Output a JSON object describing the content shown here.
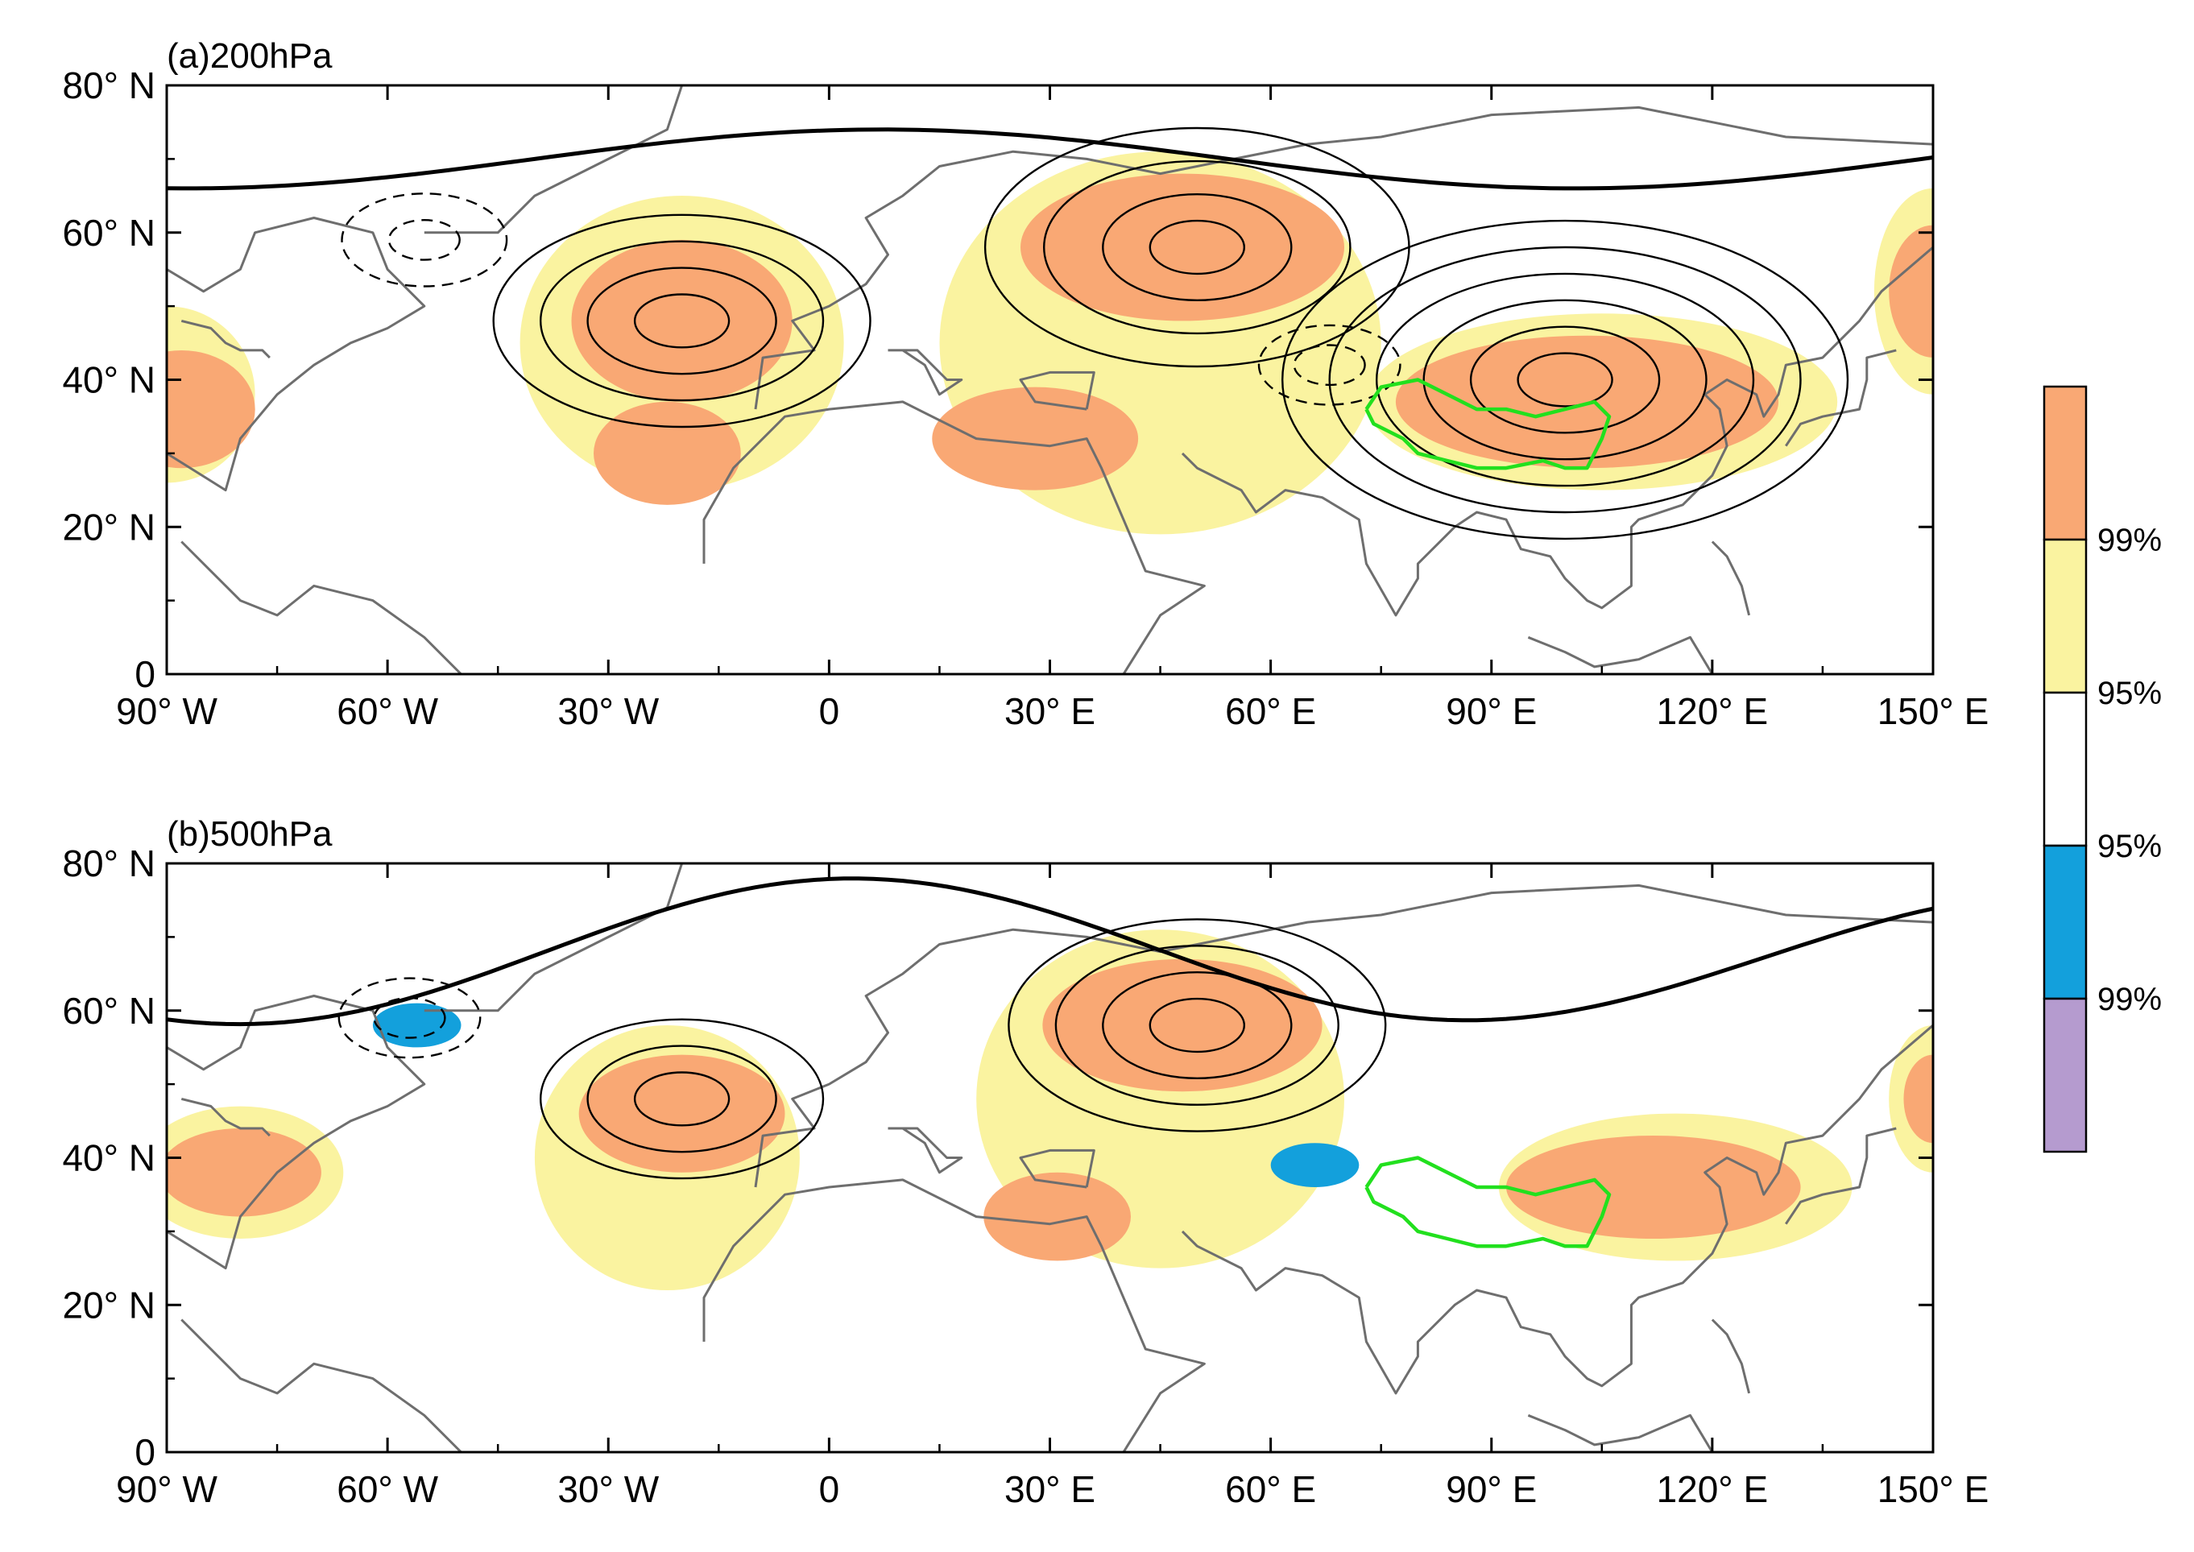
{
  "figure": {
    "panels": [
      {
        "id": "a",
        "title": "(a)200hPa",
        "lat_ticks": [
          "80° N",
          "60° N",
          "40° N",
          "20° N",
          "0"
        ],
        "lon_ticks": [
          "90° W",
          "60° W",
          "30° W",
          "0",
          "30° E",
          "60° E",
          "90° E",
          "120° E",
          "150° E"
        ],
        "lon_range": [
          -90,
          150
        ],
        "lat_range": [
          0,
          80
        ],
        "shading": [
          {
            "level": "95%",
            "color": "#faf3a0",
            "center": [
              -90,
              38
            ],
            "radius": [
              12,
              12
            ]
          },
          {
            "level": "99%",
            "color": "#f9a874",
            "center": [
              -88,
              36
            ],
            "radius": [
              10,
              8
            ]
          },
          {
            "level": "95%",
            "color": "#faf3a0",
            "center": [
              -20,
              45
            ],
            "radius": [
              22,
              20
            ]
          },
          {
            "level": "99%",
            "color": "#f9a874",
            "center": [
              -20,
              48
            ],
            "radius": [
              15,
              11
            ]
          },
          {
            "level": "99%",
            "color": "#f9a874",
            "center": [
              -22,
              30
            ],
            "radius": [
              10,
              7
            ]
          },
          {
            "level": "95%",
            "color": "#faf3a0",
            "center": [
              45,
              45
            ],
            "radius": [
              30,
              26
            ]
          },
          {
            "level": "99%",
            "color": "#f9a874",
            "center": [
              48,
              58
            ],
            "radius": [
              22,
              10
            ]
          },
          {
            "level": "99%",
            "color": "#f9a874",
            "center": [
              28,
              32
            ],
            "radius": [
              14,
              7
            ]
          },
          {
            "level": "95%",
            "color": "#faf3a0",
            "center": [
              105,
              37
            ],
            "radius": [
              32,
              12
            ]
          },
          {
            "level": "99%",
            "color": "#f9a874",
            "center": [
              103,
              37
            ],
            "radius": [
              26,
              9
            ]
          },
          {
            "level": "95%",
            "color": "#faf3a0",
            "center": [
              150,
              52
            ],
            "radius": [
              8,
              14
            ]
          },
          {
            "level": "99%",
            "color": "#f9a874",
            "center": [
              150,
              52
            ],
            "radius": [
              6,
              9
            ]
          }
        ],
        "contour_centers": [
          {
            "center": [
              -20,
              48
            ],
            "rings": [
              4,
              8,
              12,
              16
            ],
            "dashed": false
          },
          {
            "center": [
              50,
              58
            ],
            "rings": [
              4,
              8,
              13,
              18
            ],
            "dashed": false
          },
          {
            "center": [
              100,
              40
            ],
            "rings": [
              4,
              8,
              12,
              16,
              20,
              24
            ],
            "dashed": false
          },
          {
            "center": [
              -55,
              59
            ],
            "rings": [
              3,
              7
            ],
            "dashed": true
          },
          {
            "center": [
              68,
              42
            ],
            "rings": [
              3,
              6
            ],
            "dashed": true
          }
        ]
      },
      {
        "id": "b",
        "title": "(b)500hPa",
        "lat_ticks": [
          "80° N",
          "60° N",
          "40° N",
          "20° N",
          "0"
        ],
        "lon_ticks": [
          "90° W",
          "60° W",
          "30° W",
          "0",
          "30° E",
          "60° E",
          "90° E",
          "120° E",
          "150° E"
        ],
        "lon_range": [
          -90,
          150
        ],
        "lat_range": [
          0,
          80
        ],
        "shading": [
          {
            "level": "95%",
            "color": "#faf3a0",
            "center": [
              -80,
              38
            ],
            "radius": [
              14,
              9
            ]
          },
          {
            "level": "99%",
            "color": "#f9a874",
            "center": [
              -80,
              38
            ],
            "radius": [
              11,
              6
            ]
          },
          {
            "level": "95%",
            "color": "#faf3a0",
            "center": [
              -22,
              40
            ],
            "radius": [
              18,
              18
            ]
          },
          {
            "level": "99%",
            "color": "#f9a874",
            "center": [
              -20,
              46
            ],
            "radius": [
              14,
              8
            ]
          },
          {
            "level": "95%",
            "color": "#faf3a0",
            "center": [
              45,
              48
            ],
            "radius": [
              25,
              23
            ]
          },
          {
            "level": "99%",
            "color": "#f9a874",
            "center": [
              48,
              58
            ],
            "radius": [
              19,
              9
            ]
          },
          {
            "level": "99%",
            "color": "#f9a874",
            "center": [
              31,
              32
            ],
            "radius": [
              10,
              6
            ]
          },
          {
            "level": "95%",
            "color": "#faf3a0",
            "center": [
              115,
              36
            ],
            "radius": [
              24,
              10
            ]
          },
          {
            "level": "99%",
            "color": "#f9a874",
            "center": [
              112,
              36
            ],
            "radius": [
              20,
              7
            ]
          },
          {
            "level": "95%",
            "color": "#faf3a0",
            "center": [
              150,
              48
            ],
            "radius": [
              6,
              10
            ]
          },
          {
            "level": "99%",
            "color": "#f9a874",
            "center": [
              150,
              48
            ],
            "radius": [
              4,
              6
            ]
          },
          {
            "level": "95%",
            "color": "#13a0dc",
            "center": [
              -56,
              58
            ],
            "radius": [
              6,
              3
            ]
          },
          {
            "level": "95%",
            "color": "#13a0dc",
            "center": [
              66,
              39
            ],
            "radius": [
              6,
              3
            ]
          }
        ],
        "contour_centers": [
          {
            "center": [
              -20,
              48
            ],
            "rings": [
              4,
              8,
              12
            ],
            "dashed": false
          },
          {
            "center": [
              50,
              58
            ],
            "rings": [
              4,
              8,
              12,
              16
            ],
            "dashed": false
          },
          {
            "center": [
              -57,
              59
            ],
            "rings": [
              3,
              6
            ],
            "dashed": true
          }
        ]
      }
    ],
    "colorbar": {
      "colors": [
        "#f9a874",
        "#faf3a0",
        "#ffffff",
        "#13a0dc",
        "#b59bcf"
      ],
      "labels": [
        "99%",
        "95%",
        "95%",
        "99%"
      ]
    },
    "green_region_label": "",
    "units": ""
  }
}
